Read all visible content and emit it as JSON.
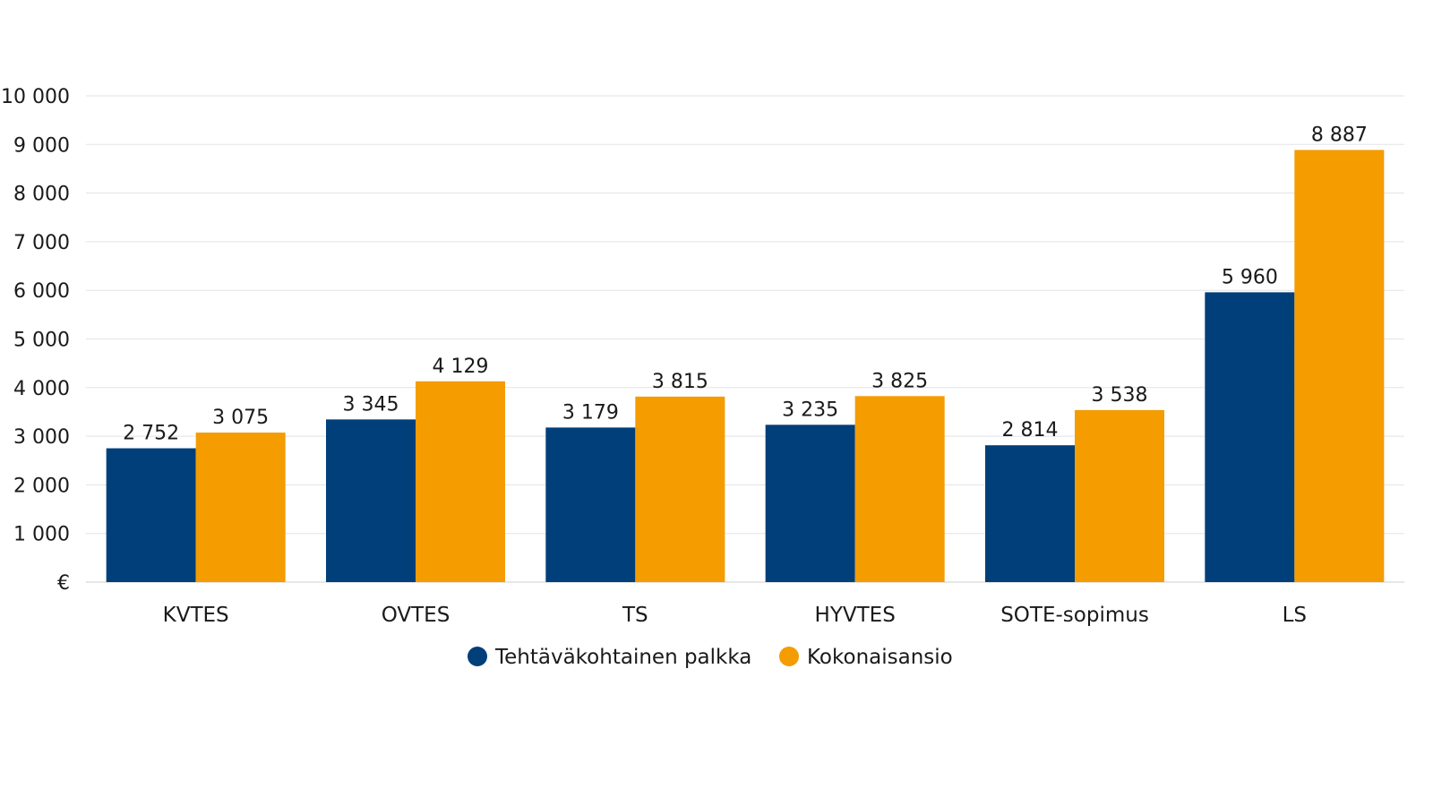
{
  "chart_data": {
    "type": "bar",
    "categories": [
      "KVTES",
      "OVTES",
      "TS",
      "HYVTES",
      "SOTE-sopimus",
      "LS"
    ],
    "series": [
      {
        "name": "Tehtäväkohtainen palkka",
        "color": "#003f7a",
        "values": [
          2752,
          3345,
          3179,
          3235,
          2814,
          5960
        ],
        "labels": [
          "2 752",
          "3 345",
          "3 179",
          "3 235",
          "2 814",
          "5 960"
        ]
      },
      {
        "name": "Kokonaisansio",
        "color": "#f49c00",
        "values": [
          3075,
          4129,
          3815,
          3825,
          3538,
          8887
        ],
        "labels": [
          "3 075",
          "4 129",
          "3 815",
          "3 825",
          "3 538",
          "8 887"
        ]
      }
    ],
    "y_ticks": [
      {
        "value": 0,
        "label": "€"
      },
      {
        "value": 1000,
        "label": "1 000"
      },
      {
        "value": 2000,
        "label": "2 000"
      },
      {
        "value": 3000,
        "label": "3 000"
      },
      {
        "value": 4000,
        "label": "4 000"
      },
      {
        "value": 5000,
        "label": "5 000"
      },
      {
        "value": 6000,
        "label": "6 000"
      },
      {
        "value": 7000,
        "label": "7 000"
      },
      {
        "value": 8000,
        "label": "8 000"
      },
      {
        "value": 9000,
        "label": "9 000"
      },
      {
        "value": 10000,
        "label": "10 000"
      }
    ],
    "ylim": [
      0,
      10000
    ],
    "grid": true,
    "legend": "bottom-center"
  }
}
